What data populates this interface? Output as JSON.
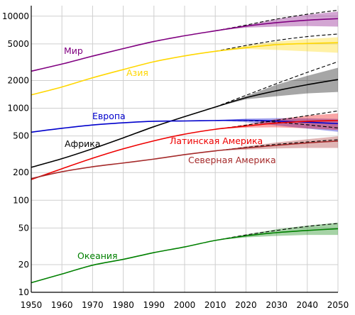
{
  "chart_data": {
    "type": "line",
    "title": "",
    "xlabel": "",
    "ylabel": "",
    "xlim": [
      1950,
      2050
    ],
    "ylim": [
      10,
      13000
    ],
    "y_scale": "log",
    "grid": true,
    "x_ticks": [
      1950,
      1960,
      1970,
      1980,
      1990,
      2000,
      2010,
      2020,
      2030,
      2040,
      2050
    ],
    "y_ticks": [
      10,
      20,
      50,
      100,
      200,
      500,
      1000,
      2000,
      5000,
      10000
    ],
    "series": [
      {
        "name": "Мир",
        "color": "#800080",
        "historical": {
          "x": [
            1950,
            1960,
            1970,
            1980,
            1990,
            2000,
            2010
          ],
          "y": [
            2525,
            3018,
            3682,
            4440,
            5310,
            6127,
            6930
          ]
        },
        "projection": {
          "x": [
            2010,
            2020,
            2030,
            2040,
            2050
          ],
          "median": [
            6930,
            7800,
            8500,
            9050,
            9400
          ],
          "low": [
            6930,
            7500,
            7700,
            7800,
            7700
          ],
          "high": [
            6930,
            8000,
            9300,
            10400,
            11200
          ],
          "dashed": [
            6930,
            8000,
            9300,
            10500,
            11600
          ]
        }
      },
      {
        "name": "Азия",
        "color": "#ffd700",
        "historical": {
          "x": [
            1950,
            1960,
            1970,
            1980,
            1990,
            2000,
            2010
          ],
          "y": [
            1395,
            1700,
            2140,
            2630,
            3200,
            3700,
            4150
          ]
        },
        "projection": {
          "x": [
            2010,
            2020,
            2030,
            2040,
            2050
          ],
          "median": [
            4150,
            4550,
            4900,
            5050,
            5150
          ],
          "low": [
            4150,
            4400,
            4300,
            4150,
            4000
          ],
          "high": [
            4150,
            4800,
            5300,
            5650,
            5900
          ],
          "dashed": [
            4150,
            4800,
            5450,
            6000,
            6400
          ]
        }
      },
      {
        "name": "Африка",
        "color": "#000000",
        "historical": {
          "x": [
            1950,
            1960,
            1970,
            1980,
            1990,
            2000,
            2010
          ],
          "y": [
            228,
            283,
            363,
            476,
            630,
            810,
            1030
          ]
        },
        "projection": {
          "x": [
            2010,
            2020,
            2030,
            2040,
            2050
          ],
          "median": [
            1030,
            1300,
            1550,
            1800,
            2050
          ],
          "low": [
            1030,
            1250,
            1350,
            1450,
            1500
          ],
          "high": [
            1030,
            1350,
            1800,
            2250,
            2750
          ],
          "dashed": [
            1030,
            1380,
            1850,
            2450,
            3200
          ]
        }
      },
      {
        "name": "Европа",
        "color": "#0000cc",
        "historical": {
          "x": [
            1950,
            1960,
            1970,
            1980,
            1990,
            2000,
            2010
          ],
          "y": [
            549,
            605,
            657,
            694,
            721,
            727,
            735
          ]
        },
        "projection": {
          "x": [
            2010,
            2020,
            2030,
            2040,
            2050
          ],
          "median": [
            735,
            740,
            725,
            705,
            680
          ],
          "low": [
            735,
            705,
            650,
            600,
            555
          ],
          "high": [
            735,
            770,
            780,
            775,
            765
          ],
          "dashed": [
            735,
            735,
            705,
            660,
            610
          ]
        }
      },
      {
        "name": "Латинская Америка",
        "color": "#ee0000",
        "historical": {
          "x": [
            1950,
            1960,
            1970,
            1980,
            1990,
            2000,
            2010
          ],
          "y": [
            168,
            220,
            286,
            362,
            442,
            522,
            590
          ]
        },
        "projection": {
          "x": [
            2010,
            2020,
            2030,
            2040,
            2050
          ],
          "median": [
            590,
            640,
            690,
            720,
            735
          ],
          "low": [
            590,
            615,
            620,
            605,
            580
          ],
          "high": [
            590,
            665,
            760,
            830,
            880
          ],
          "dashed": [
            590,
            655,
            740,
            830,
            935
          ]
        }
      },
      {
        "name": "Северная Америка",
        "color": "#a52a2a",
        "historical": {
          "x": [
            1950,
            1960,
            1970,
            1980,
            1990,
            2000,
            2010
          ],
          "y": [
            172,
            204,
            231,
            254,
            280,
            313,
            344
          ]
        },
        "projection": {
          "x": [
            2010,
            2020,
            2030,
            2040,
            2050
          ],
          "median": [
            344,
            370,
            395,
            420,
            440
          ],
          "low": [
            344,
            355,
            365,
            370,
            370
          ],
          "high": [
            344,
            385,
            425,
            460,
            495
          ],
          "dashed": [
            344,
            375,
            405,
            430,
            455
          ]
        }
      },
      {
        "name": "Океания",
        "color": "#008000",
        "historical": {
          "x": [
            1950,
            1960,
            1970,
            1980,
            1990,
            2000,
            2010
          ],
          "y": [
            12.7,
            15.8,
            19.7,
            22.8,
            27.0,
            31.1,
            36.6
          ]
        },
        "projection": {
          "x": [
            2010,
            2020,
            2030,
            2040,
            2050
          ],
          "median": [
            36.6,
            41.0,
            44.5,
            47.0,
            49.0
          ],
          "low": [
            36.6,
            39.5,
            41.0,
            42.0,
            42.0
          ],
          "high": [
            36.6,
            42.5,
            48.5,
            53.0,
            57.0
          ],
          "dashed": [
            36.6,
            42.0,
            47.0,
            52.0,
            56.0
          ]
        }
      }
    ]
  }
}
